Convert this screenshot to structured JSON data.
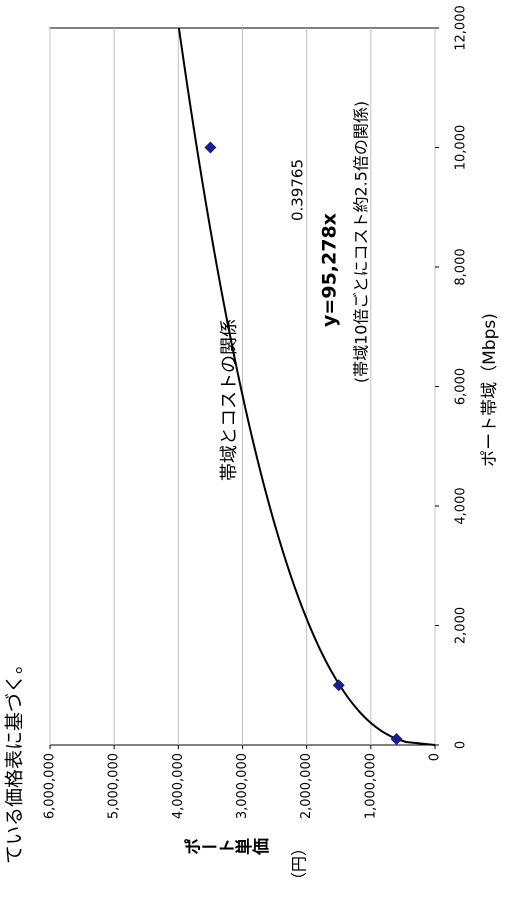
{
  "chart_data": {
    "type": "scatter",
    "title": "帯域とコストの関係",
    "x_label": "ポート帯域（Mbps)",
    "y_label": "ポート単価",
    "y_unit": "（円）",
    "x": [
      100,
      1000,
      10000
    ],
    "values": [
      600000,
      1500000,
      3500000
    ],
    "color": "#1c1c8a",
    "xlim": [
      0,
      12000
    ],
    "xticks": [
      0,
      {
        "value": 2000,
        "label": "2,000"
      },
      {
        "value": 4000,
        "label": "4,000"
      },
      {
        "value": 6000,
        "label": "6,000"
      },
      {
        "value": 8000,
        "label": "8,000"
      },
      {
        "value": 10000,
        "label": "10,000"
      },
      {
        "value": 12000,
        "label": "12,000"
      }
    ],
    "ylim": [
      0,
      6000000
    ],
    "yticks": [
      0,
      {
        "value": 1000000,
        "label": "1,000,000"
      },
      {
        "value": 2000000,
        "label": "2,000,000"
      },
      {
        "value": 3000000,
        "label": "3,000,000"
      },
      {
        "value": 4000000,
        "label": "4,000,000"
      },
      {
        "value": 5000000,
        "label": "5,000,000"
      },
      {
        "value": 6000000,
        "label": "6,000,000"
      }
    ],
    "grid": true,
    "trendline": {
      "coefficient": 95278,
      "exponent": 0.39765,
      "color": "#000000"
    },
    "annotations": [
      "y=95,278x",
      "0.39765",
      "(帯域10倍ごとにコスト約2.5倍の関係)"
    ]
  },
  "footnote": "ている価格表に基づく。"
}
